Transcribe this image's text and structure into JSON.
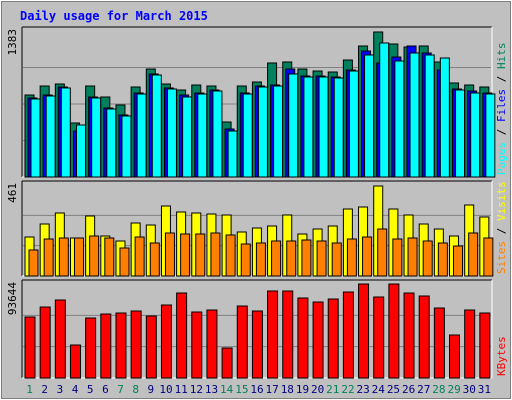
{
  "chart_data": {
    "title": "Daily usage for March 2015",
    "days": [
      "1",
      "2",
      "3",
      "4",
      "5",
      "6",
      "7",
      "8",
      "9",
      "10",
      "11",
      "12",
      "13",
      "14",
      "15",
      "16",
      "17",
      "18",
      "19",
      "20",
      "21",
      "22",
      "23",
      "24",
      "25",
      "26",
      "27",
      "28",
      "29",
      "30",
      "31"
    ],
    "weekend_days": [
      "1",
      "7",
      "8",
      "14",
      "15",
      "21",
      "22",
      "28",
      "29"
    ],
    "panels": [
      {
        "type": "bar",
        "max_label": "1383",
        "ylim": [
          0,
          1383
        ],
        "series": [
          {
            "name": "Hits",
            "color": "#00805c",
            "values": [
              780,
              860,
              880,
              510,
              860,
              760,
              680,
              850,
              1020,
              880,
              820,
              870,
              860,
              520,
              860,
              900,
              1080,
              1090,
              1020,
              1000,
              990,
              1110,
              1240,
              1370,
              1260,
              1230,
              1240,
              1090,
              890,
              870,
              850
            ]
          },
          {
            "name": "Files",
            "color": "#0000ff",
            "values": [
              750,
              780,
              850,
              440,
              760,
              650,
              590,
              800,
              980,
              840,
              780,
              800,
              820,
              450,
              800,
              860,
              870,
              1020,
              960,
              960,
              950,
              1010,
              1190,
              1080,
              1140,
              1240,
              1170,
              1010,
              830,
              810,
              800
            ]
          },
          {
            "name": "Pages",
            "color": "#00ffff",
            "values": [
              740,
              770,
              840,
              490,
              750,
              640,
              580,
              790,
              970,
              830,
              760,
              790,
              810,
              440,
              790,
              850,
              860,
              980,
              950,
              950,
              940,
              1000,
              1160,
              1270,
              1100,
              1170,
              1160,
              1130,
              820,
              800,
              790
            ]
          }
        ],
        "legend": [
          "Pages",
          "Files",
          "Hits"
        ]
      },
      {
        "type": "bar",
        "max_label": "461",
        "ylim": [
          0,
          461
        ],
        "series": [
          {
            "name": "Visits",
            "color": "#ffff00",
            "values": [
              200,
              265,
              320,
              190,
              305,
              205,
              175,
              270,
              258,
              355,
              325,
              320,
              315,
              310,
              225,
              245,
              255,
              310,
              215,
              240,
              253,
              340,
              350,
              455,
              340,
              310,
              265,
              240,
              205,
              360,
              300
            ]
          },
          {
            "name": "Sites",
            "color": "#ff8000",
            "values": [
              130,
              185,
              195,
              190,
              205,
              195,
              140,
              200,
              165,
              220,
              215,
              215,
              220,
              210,
              160,
              165,
              175,
              175,
              180,
              175,
              165,
              185,
              200,
              240,
              185,
              190,
              175,
              165,
              150,
              220,
              195
            ]
          }
        ],
        "legend": [
          "Sites",
          "Visits"
        ]
      },
      {
        "type": "bar",
        "max_label": "93644",
        "ylim": [
          0,
          93644
        ],
        "series": [
          {
            "name": "KBytes",
            "color": "#ff0000",
            "values": [
              60500,
              70800,
              77900,
              32500,
              60000,
              63800,
              64800,
              66300,
              62000,
              72700,
              84200,
              65700,
              67600,
              30000,
              72100,
              67200,
              86700,
              86300,
              79500,
              75300,
              78600,
              86100,
              93600,
              81000,
              93644,
              85000,
              81400,
              70000,
              43300,
              67500,
              65200
            ]
          }
        ],
        "legend": [
          "KBytes"
        ]
      }
    ]
  }
}
